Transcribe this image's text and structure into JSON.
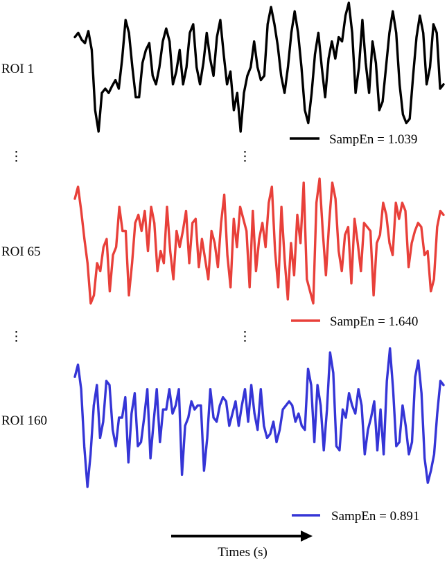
{
  "chart_data": [
    {
      "type": "line",
      "name": "ROI 1",
      "color": "#000000",
      "legend": "SampEn = 1.039",
      "values": [
        0.55,
        0.6,
        0.52,
        0.48,
        0.62,
        0.4,
        -0.3,
        -0.55,
        -0.1,
        -0.05,
        -0.1,
        -0.02,
        0.05,
        -0.05,
        0.3,
        0.75,
        0.6,
        0.2,
        -0.15,
        -0.15,
        0.25,
        0.4,
        0.48,
        0.1,
        0.0,
        0.2,
        0.5,
        0.65,
        0.5,
        0.0,
        0.15,
        0.4,
        0.0,
        0.2,
        0.6,
        0.7,
        0.2,
        0.0,
        0.25,
        0.6,
        0.3,
        0.1,
        0.55,
        0.75,
        0.35,
        0.0,
        0.15,
        -0.3,
        -0.1,
        -0.55,
        -0.1,
        0.1,
        0.2,
        0.5,
        0.2,
        0.05,
        0.1,
        0.7,
        0.9,
        0.7,
        0.45,
        0.1,
        -0.1,
        0.2,
        0.6,
        0.85,
        0.6,
        0.2,
        -0.3,
        -0.45,
        -0.1,
        0.35,
        0.6,
        0.2,
        -0.15,
        0.3,
        0.5,
        0.3,
        0.55,
        0.5,
        0.8,
        0.95,
        0.6,
        -0.1,
        0.2,
        0.75,
        0.25,
        -0.1,
        0.5,
        0.25,
        -0.3,
        -0.2,
        0.2,
        0.6,
        0.85,
        0.6,
        0.0,
        -0.35,
        -0.45,
        -0.4,
        0.1,
        0.55,
        0.8,
        0.6,
        0.0,
        0.2,
        0.7,
        0.6,
        -0.05,
        0.0
      ],
      "ylim": [
        -0.75,
        1.0
      ]
    },
    {
      "type": "line",
      "name": "ROI 65",
      "color": "#e8403a",
      "legend": "SampEn = 1.640",
      "values": [
        0.7,
        0.85,
        0.55,
        0.2,
        -0.1,
        -0.6,
        -0.5,
        -0.1,
        -0.2,
        0.1,
        0.2,
        -0.45,
        0.0,
        0.1,
        0.6,
        0.3,
        0.3,
        -0.5,
        -0.1,
        0.4,
        0.5,
        0.3,
        0.55,
        0.05,
        0.6,
        0.4,
        -0.2,
        0.05,
        -0.1,
        0.6,
        0.05,
        -0.3,
        0.3,
        0.1,
        0.3,
        0.55,
        -0.1,
        0.4,
        0.45,
        -0.15,
        0.2,
        -0.05,
        -0.3,
        0.3,
        0.15,
        -0.15,
        0.4,
        0.75,
        0.0,
        -0.4,
        0.45,
        0.1,
        0.6,
        0.45,
        0.3,
        -0.4,
        0.55,
        -0.2,
        0.2,
        0.4,
        0.1,
        0.65,
        0.85,
        0.05,
        -0.4,
        0.6,
        -0.05,
        -0.55,
        0.15,
        -0.25,
        0.5,
        0.15,
        0.9,
        -0.3,
        -0.45,
        -0.6,
        0.65,
        0.95,
        0.3,
        -0.25,
        0.4,
        0.9,
        0.7,
        0.05,
        -0.2,
        0.25,
        0.35,
        -0.35,
        0.45,
        0.15,
        -0.2,
        0.4,
        0.35,
        0.3,
        -0.5,
        0.15,
        0.25,
        0.65,
        0.5,
        0.15,
        0.0,
        0.65,
        0.45,
        0.65,
        0.55,
        -0.15,
        0.15,
        0.3,
        0.4,
        0.35,
        0.0,
        0.05,
        -0.45,
        -0.3,
        0.35,
        0.55,
        0.5
      ]
    },
    {
      "type": "line",
      "name": "ROI 160",
      "color": "#3535d6",
      "legend": "SampEn = 0.891",
      "values": [
        0.65,
        0.8,
        0.5,
        -0.2,
        -0.7,
        -0.3,
        0.3,
        0.55,
        -0.1,
        0.1,
        0.6,
        0.55,
        0.0,
        -0.2,
        0.15,
        0.15,
        0.4,
        -0.4,
        0.2,
        0.45,
        -0.2,
        -0.15,
        0.15,
        0.5,
        -0.35,
        0.1,
        0.5,
        -0.15,
        0.25,
        0.25,
        0.5,
        0.2,
        0.3,
        0.5,
        -0.55,
        0.05,
        0.15,
        0.35,
        0.25,
        0.3,
        0.3,
        -0.5,
        -0.1,
        0.5,
        0.15,
        0.1,
        0.3,
        0.4,
        0.35,
        0.05,
        0.2,
        0.35,
        0.05,
        0.3,
        0.5,
        0.1,
        0.55,
        0.2,
        0.0,
        0.5,
        0.05,
        -0.1,
        -0.05,
        0.1,
        -0.15,
        0.0,
        0.25,
        0.3,
        0.35,
        0.3,
        0.1,
        0.2,
        0.05,
        0.0,
        0.75,
        0.55,
        -0.15,
        0.55,
        0.3,
        -0.25,
        0.25,
        0.95,
        0.7,
        -0.2,
        -0.25,
        0.25,
        0.15,
        0.45,
        0.3,
        0.2,
        0.5,
        0.3,
        -0.3,
        0.0,
        0.15,
        0.35,
        -0.25,
        0.25,
        -0.3,
        0.6,
        1.0,
        0.5,
        -0.2,
        -0.15,
        0.3,
        0.05,
        -0.3,
        -0.15,
        0.65,
        0.85,
        0.45,
        -0.35,
        -0.65,
        -0.5,
        -0.3,
        0.2,
        0.6,
        0.55
      ]
    }
  ],
  "row_labels": [
    "ROI 1",
    "ROI 65",
    "ROI 160"
  ],
  "legends": [
    "SampEn = 1.039",
    "SampEn = 1.640",
    "SampEn = 0.891"
  ],
  "ellipsis": "⋮",
  "xlabel": "Times (s)"
}
